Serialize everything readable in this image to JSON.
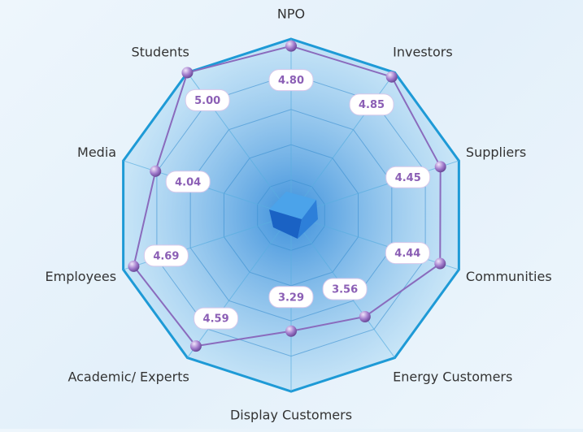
{
  "chart_data": {
    "type": "radar",
    "categories": [
      "NPO",
      "Investors",
      "Suppliers",
      "Communities",
      "Energy Customers",
      "Display Customers",
      "Academic/ Experts",
      "Employees",
      "Media",
      "Students"
    ],
    "values": [
      4.8,
      4.85,
      4.45,
      4.44,
      3.56,
      3.29,
      4.59,
      4.69,
      4.04,
      5.0
    ],
    "value_labels": [
      "4.80",
      "4.85",
      "4.45",
      "4.44",
      "3.56",
      "3.29",
      "4.59",
      "4.69",
      "4.04",
      "5.00"
    ],
    "color": "#8a6bbd",
    "rlim": [
      0,
      5
    ],
    "rticks": [
      1,
      2,
      3,
      4,
      5
    ],
    "grid": true
  }
}
